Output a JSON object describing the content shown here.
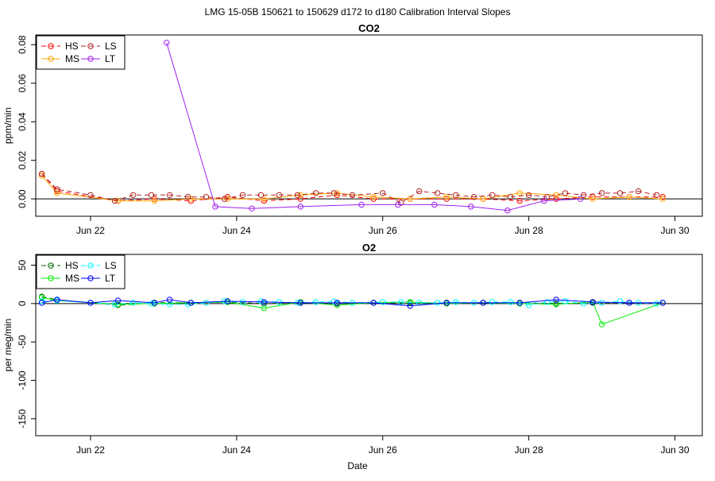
{
  "figure": {
    "title": "LMG   15-05B    150621 to 150629    d172 to d180   Calibration Interval Slopes",
    "xlabel": "Date"
  },
  "chart_data": [
    {
      "type": "line",
      "title": "CO2",
      "ylabel": "ppm/min",
      "xlim": [
        "2015-06-21T06:00",
        "2015-06-30T09:00"
      ],
      "ylim": [
        -0.009,
        0.085
      ],
      "x_ticks": [
        {
          "label": "Jun 22",
          "x": "2015-06-22"
        },
        {
          "label": "Jun 24",
          "x": "2015-06-24"
        },
        {
          "label": "Jun 26",
          "x": "2015-06-26"
        },
        {
          "label": "Jun 28",
          "x": "2015-06-28"
        },
        {
          "label": "Jun 30",
          "x": "2015-06-30"
        }
      ],
      "y_ticks": [
        0.0,
        0.02,
        0.04,
        0.06,
        0.08
      ],
      "y_tick_labels": [
        "0.00",
        "0.02",
        "0.04",
        "0.06",
        "0.08"
      ],
      "reference_line": 0,
      "legend": {
        "position": "top-left",
        "columns": 2
      },
      "series": [
        {
          "name": "HS",
          "color": "#ff0000",
          "dash": "dashed",
          "x": [
            "2015-06-21T08:00",
            "2015-06-21T13:00",
            "2015-06-22T09:00",
            "2015-06-22T21:00",
            "2015-06-23T09:00",
            "2015-06-23T21:00",
            "2015-06-24T09:00",
            "2015-06-24T21:00",
            "2015-06-25T09:00",
            "2015-06-25T21:00",
            "2015-06-26T09:00",
            "2015-06-26T21:00",
            "2015-06-27T09:00",
            "2015-06-27T21:00",
            "2015-06-28T09:00",
            "2015-06-28T21:00",
            "2015-06-29T09:00",
            "2015-06-29T20:00"
          ],
          "y": [
            0.013,
            0.004,
            -0.001,
            0.0,
            -0.001,
            0.001,
            -0.001,
            0.0,
            0.002,
            0.0,
            0.0,
            0.0,
            0.0,
            -0.001,
            0.0,
            0.001,
            0.001,
            0.001
          ]
        },
        {
          "name": "MS",
          "color": "#ffa500",
          "dash": "solid",
          "x": [
            "2015-06-21T08:00",
            "2015-06-21T13:00",
            "2015-06-22T09:00",
            "2015-06-22T21:00",
            "2015-06-23T09:00",
            "2015-06-23T21:00",
            "2015-06-24T09:00",
            "2015-06-24T21:00",
            "2015-06-25T09:00",
            "2015-06-25T21:00",
            "2015-06-26T09:00",
            "2015-06-26T21:00",
            "2015-06-27T09:00",
            "2015-06-27T21:00",
            "2015-06-28T09:00",
            "2015-06-28T21:00",
            "2015-06-29T09:00",
            "2015-06-29T20:00"
          ],
          "y": [
            0.012,
            0.003,
            -0.001,
            -0.001,
            0.0,
            0.0,
            0.0,
            0.002,
            0.003,
            0.001,
            0.0,
            0.001,
            0.0,
            0.003,
            0.002,
            0.0,
            0.001,
            0.0
          ]
        },
        {
          "name": "LS",
          "color": "#b22222",
          "dash": "dashed",
          "x": [
            "2015-06-21T08:00",
            "2015-06-21T13:00",
            "2015-06-22T00:00",
            "2015-06-22T08:00",
            "2015-06-22T14:00",
            "2015-06-22T20:00",
            "2015-06-23T02:00",
            "2015-06-23T08:00",
            "2015-06-23T14:00",
            "2015-06-23T20:00",
            "2015-06-24T02:00",
            "2015-06-24T08:00",
            "2015-06-24T14:00",
            "2015-06-24T20:00",
            "2015-06-25T02:00",
            "2015-06-25T08:00",
            "2015-06-25T14:00",
            "2015-06-26T00:00",
            "2015-06-26T06:00",
            "2015-06-26T12:00",
            "2015-06-26T18:00",
            "2015-06-27T00:00",
            "2015-06-27T06:00",
            "2015-06-27T12:00",
            "2015-06-27T18:00",
            "2015-06-28T00:00",
            "2015-06-28T06:00",
            "2015-06-28T12:00",
            "2015-06-28T18:00",
            "2015-06-29T00:00",
            "2015-06-29T06:00",
            "2015-06-29T12:00",
            "2015-06-29T18:00"
          ],
          "y": [
            0.013,
            0.005,
            0.002,
            -0.001,
            0.002,
            0.002,
            0.002,
            0.001,
            0.001,
            0.0,
            0.002,
            0.002,
            0.002,
            0.002,
            0.003,
            0.003,
            0.002,
            0.003,
            -0.002,
            0.004,
            0.003,
            0.002,
            0.001,
            0.002,
            0.001,
            0.002,
            0.001,
            0.003,
            0.002,
            0.003,
            0.003,
            0.004,
            0.002
          ]
        },
        {
          "name": "LT",
          "color": "#a020f0",
          "dash": "solid",
          "x": [
            "2015-06-23T01:00",
            "2015-06-23T17:00",
            "2015-06-24T05:00",
            "2015-06-24T21:00",
            "2015-06-25T17:00",
            "2015-06-26T05:00",
            "2015-06-26T17:00",
            "2015-06-27T05:00",
            "2015-06-27T17:00",
            "2015-06-28T05:00",
            "2015-06-28T17:00"
          ],
          "y": [
            0.081,
            -0.004,
            -0.005,
            -0.004,
            -0.003,
            -0.003,
            -0.003,
            -0.004,
            -0.006,
            -0.001,
            0.0
          ]
        }
      ]
    },
    {
      "type": "line",
      "title": "O2",
      "ylabel": "per meg/min",
      "xlim": [
        "2015-06-21T06:00",
        "2015-06-30T09:00"
      ],
      "ylim": [
        -172,
        64
      ],
      "x_ticks": [
        {
          "label": "Jun 22",
          "x": "2015-06-22"
        },
        {
          "label": "Jun 24",
          "x": "2015-06-24"
        },
        {
          "label": "Jun 26",
          "x": "2015-06-26"
        },
        {
          "label": "Jun 28",
          "x": "2015-06-28"
        },
        {
          "label": "Jun 30",
          "x": "2015-06-30"
        }
      ],
      "y_ticks": [
        -150,
        -100,
        -50,
        0,
        50
      ],
      "y_tick_labels": [
        "-150",
        "-100",
        "-50",
        "0",
        "50"
      ],
      "reference_line": 0,
      "legend": {
        "position": "top-left",
        "columns": 2
      },
      "series": [
        {
          "name": "HS",
          "color": "#006400",
          "dash": "dashed",
          "x": [
            "2015-06-21T08:00",
            "2015-06-21T13:00",
            "2015-06-22T09:00",
            "2015-06-22T21:00",
            "2015-06-23T09:00",
            "2015-06-23T21:00",
            "2015-06-24T09:00",
            "2015-06-24T21:00",
            "2015-06-25T09:00",
            "2015-06-25T21:00",
            "2015-06-26T09:00",
            "2015-06-26T21:00",
            "2015-06-27T09:00",
            "2015-06-27T21:00",
            "2015-06-28T09:00",
            "2015-06-28T21:00",
            "2015-06-29T09:00",
            "2015-06-29T20:00"
          ],
          "y": [
            9,
            5,
            -2,
            1,
            1,
            2,
            0,
            1,
            0,
            1,
            1,
            1,
            1,
            1,
            0,
            1,
            1,
            1
          ]
        },
        {
          "name": "MS",
          "color": "#00ee00",
          "dash": "solid",
          "x": [
            "2015-06-21T08:00",
            "2015-06-21T13:00",
            "2015-06-22T09:00",
            "2015-06-22T21:00",
            "2015-06-23T09:00",
            "2015-06-23T21:00",
            "2015-06-24T09:00",
            "2015-06-24T21:00",
            "2015-06-25T09:00",
            "2015-06-25T21:00",
            "2015-06-26T09:00",
            "2015-06-26T21:00",
            "2015-06-27T09:00",
            "2015-06-27T21:00",
            "2015-06-28T09:00",
            "2015-06-28T21:00",
            "2015-06-29T00:00",
            "2015-06-29T20:00"
          ],
          "y": [
            8,
            4,
            -1,
            0,
            1,
            2,
            -6,
            2,
            -2,
            1,
            2,
            0,
            1,
            0,
            -1,
            2,
            -27,
            1
          ]
        },
        {
          "name": "LS",
          "color": "#00ffff",
          "dash": "dashed",
          "x": [
            "2015-06-21T08:00",
            "2015-06-21T13:00",
            "2015-06-22T00:00",
            "2015-06-22T08:00",
            "2015-06-22T14:00",
            "2015-06-22T20:00",
            "2015-06-23T02:00",
            "2015-06-23T08:00",
            "2015-06-23T14:00",
            "2015-06-23T20:00",
            "2015-06-24T02:00",
            "2015-06-24T08:00",
            "2015-06-24T14:00",
            "2015-06-24T20:00",
            "2015-06-25T02:00",
            "2015-06-25T08:00",
            "2015-06-25T14:00",
            "2015-06-26T00:00",
            "2015-06-26T06:00",
            "2015-06-26T12:00",
            "2015-06-26T18:00",
            "2015-06-27T00:00",
            "2015-06-27T06:00",
            "2015-06-27T12:00",
            "2015-06-27T18:00",
            "2015-06-28T00:00",
            "2015-06-28T06:00",
            "2015-06-28T12:00",
            "2015-06-28T18:00",
            "2015-06-29T00:00",
            "2015-06-29T06:00",
            "2015-06-29T12:00",
            "2015-06-29T18:00"
          ],
          "y": [
            3,
            4,
            1,
            -1,
            1,
            0,
            -1,
            -1,
            1,
            3,
            2,
            3,
            2,
            1,
            2,
            3,
            1,
            2,
            2,
            1,
            1,
            2,
            1,
            2,
            2,
            -2,
            2,
            3,
            0,
            1,
            3,
            1,
            0
          ]
        },
        {
          "name": "LT",
          "color": "#0000ff",
          "dash": "solid",
          "x": [
            "2015-06-21T08:00",
            "2015-06-21T13:00",
            "2015-06-22T00:00",
            "2015-06-22T09:00",
            "2015-06-22T21:00",
            "2015-06-23T02:00",
            "2015-06-23T09:00",
            "2015-06-23T21:00",
            "2015-06-24T09:00",
            "2015-06-24T21:00",
            "2015-06-25T09:00",
            "2015-06-25T21:00",
            "2015-06-26T09:00",
            "2015-06-26T21:00",
            "2015-06-27T09:00",
            "2015-06-27T21:00",
            "2015-06-28T09:00",
            "2015-06-28T21:00",
            "2015-06-29T09:00",
            "2015-06-29T20:00"
          ],
          "y": [
            1,
            5,
            1,
            4,
            1,
            5,
            1,
            3,
            2,
            1,
            1,
            1,
            -3,
            1,
            1,
            1,
            5,
            2,
            1,
            1
          ]
        }
      ]
    }
  ]
}
